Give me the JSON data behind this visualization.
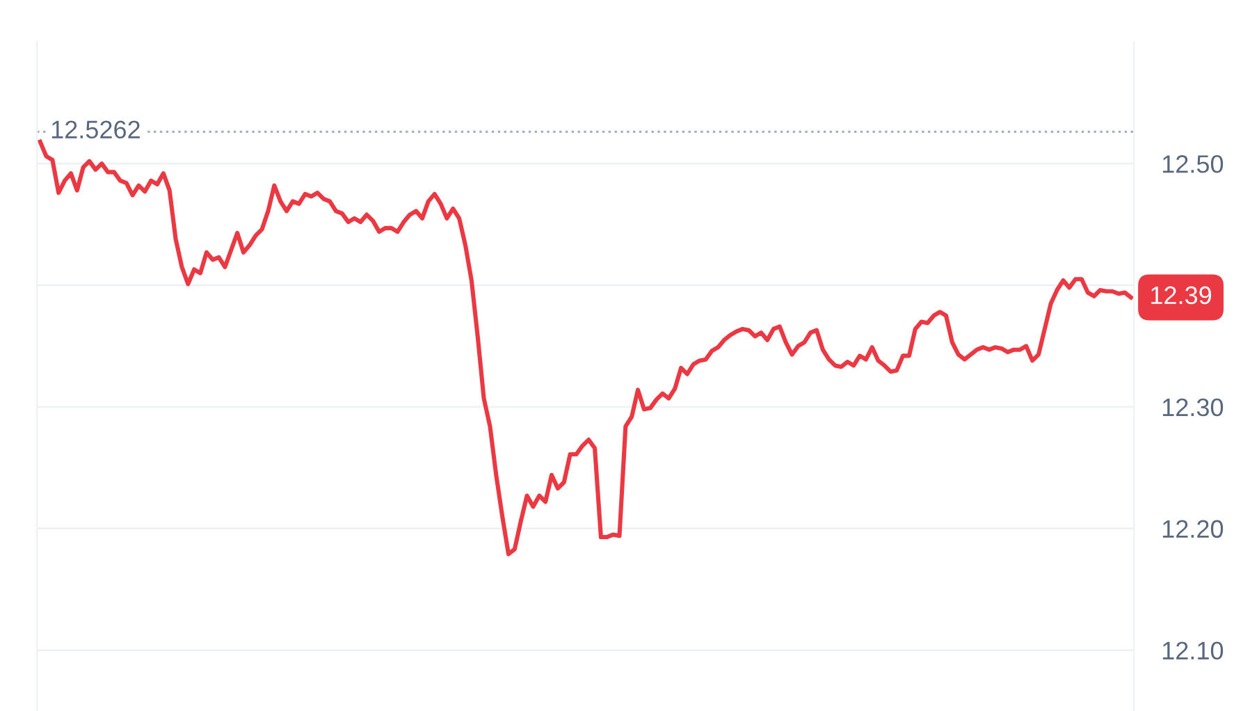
{
  "chart_data": {
    "type": "line",
    "categories": [
      null,
      null,
      null,
      null,
      null,
      null,
      null,
      null,
      null,
      null,
      null,
      null,
      null,
      null,
      null,
      null,
      null,
      null,
      null,
      null,
      null,
      null,
      null,
      null,
      null,
      null,
      null,
      null,
      null,
      null,
      null,
      null,
      null,
      null,
      null,
      null,
      null,
      null,
      null,
      null,
      null,
      null,
      null,
      null,
      null,
      null,
      null,
      null,
      null,
      null,
      null,
      null,
      null,
      null,
      null,
      null,
      null,
      null,
      null,
      null,
      null,
      null,
      null,
      null,
      null,
      null,
      null,
      null,
      null,
      null,
      null,
      null,
      null,
      null,
      null,
      null,
      null,
      null,
      null,
      null,
      null,
      null,
      null,
      null,
      null,
      null,
      null,
      null,
      null,
      null,
      null,
      null,
      null,
      null,
      null,
      null,
      null,
      null,
      null,
      null,
      null,
      null,
      null,
      null,
      null,
      null,
      null,
      null,
      null,
      null,
      null,
      null,
      null,
      null,
      null,
      null,
      null,
      null,
      null,
      null,
      null,
      null,
      null,
      null,
      null,
      null,
      null,
      null,
      null,
      null,
      null,
      null,
      null,
      null,
      null,
      null,
      null,
      null,
      null,
      null,
      null,
      null,
      null,
      null,
      null,
      null,
      null,
      null,
      null,
      null,
      null,
      null,
      null,
      null,
      null,
      null,
      null,
      null,
      null,
      null,
      null,
      null,
      null,
      null,
      null,
      null,
      null,
      null,
      null,
      null,
      null,
      null,
      null,
      null,
      null,
      null,
      null,
      null
    ],
    "series": [
      {
        "color": "#ea3943",
        "values": [
          12.518,
          12.506,
          12.503,
          12.476,
          12.486,
          12.492,
          12.478,
          12.497,
          12.502,
          12.495,
          12.5,
          12.493,
          12.493,
          12.486,
          12.484,
          12.474,
          12.482,
          12.477,
          12.486,
          12.483,
          12.492,
          12.478,
          12.438,
          12.415,
          12.401,
          12.413,
          12.41,
          12.427,
          12.421,
          12.423,
          12.415,
          12.429,
          12.443,
          12.427,
          12.433,
          12.441,
          12.446,
          12.461,
          12.482,
          12.469,
          12.461,
          12.469,
          12.467,
          12.475,
          12.473,
          12.476,
          12.471,
          12.469,
          12.461,
          12.459,
          12.452,
          12.455,
          12.452,
          12.458,
          12.453,
          12.444,
          12.447,
          12.447,
          12.444,
          12.452,
          12.458,
          12.461,
          12.455,
          12.469,
          12.475,
          12.467,
          12.455,
          12.463,
          12.455,
          12.433,
          12.404,
          12.358,
          12.307,
          12.284,
          12.244,
          12.21,
          12.179,
          12.183,
          12.206,
          12.227,
          12.218,
          12.227,
          12.222,
          12.244,
          12.233,
          12.238,
          12.261,
          12.261,
          12.268,
          12.273,
          12.266,
          12.193,
          12.193,
          12.195,
          12.194,
          12.284,
          12.292,
          12.314,
          12.298,
          12.299,
          12.306,
          12.311,
          12.307,
          12.315,
          12.332,
          12.327,
          12.335,
          12.338,
          12.339,
          12.346,
          12.349,
          12.355,
          12.359,
          12.362,
          12.364,
          12.363,
          12.358,
          12.361,
          12.355,
          12.364,
          12.366,
          12.353,
          12.343,
          12.35,
          12.353,
          12.361,
          12.363,
          12.347,
          12.339,
          12.334,
          12.333,
          12.337,
          12.334,
          12.342,
          12.339,
          12.349,
          12.338,
          12.334,
          12.329,
          12.33,
          12.342,
          12.342,
          12.364,
          12.37,
          12.369,
          12.375,
          12.378,
          12.375,
          12.353,
          12.343,
          12.339,
          12.343,
          12.347,
          12.349,
          12.347,
          12.349,
          12.348,
          12.345,
          12.347,
          12.347,
          12.35,
          12.338,
          12.343,
          12.364,
          12.385,
          12.396,
          12.404,
          12.398,
          12.405,
          12.405,
          12.394,
          12.391,
          12.396,
          12.395,
          12.395,
          12.393,
          12.394,
          12.39
        ]
      }
    ],
    "ylim": [
      12.05,
      12.6
    ],
    "yticks": [
      {
        "value": 12.1,
        "label": "12.10"
      },
      {
        "value": 12.2,
        "label": "12.20"
      },
      {
        "value": 12.3,
        "label": "12.30"
      },
      {
        "value": 12.4,
        "label": null
      },
      {
        "value": 12.5,
        "label": "12.50"
      }
    ],
    "ref_lines": [
      {
        "axis": "y",
        "value": 12.5262,
        "label": "12.5262",
        "color": "#a6b0c3",
        "line_style": "dotted"
      }
    ],
    "annotations": [
      "12.39"
    ],
    "grid": "y",
    "tick_labels": "y"
  }
}
